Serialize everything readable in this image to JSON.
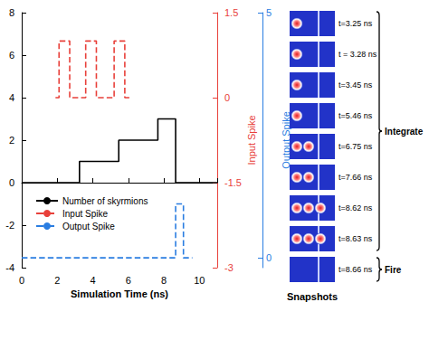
{
  "chart_data": {
    "type": "step",
    "xlabel": "Simulation Time (ns)",
    "xlim": [
      0,
      11
    ],
    "xticks": [
      0,
      2,
      4,
      6,
      8,
      10
    ],
    "ylim": [
      -4,
      8
    ],
    "yticks": [
      -4,
      -2,
      0,
      2,
      4,
      6,
      8
    ],
    "y2label": "Input Spike",
    "y2lim": [
      -3,
      1.5
    ],
    "y2ticks": [
      -3,
      -1.5,
      0,
      1.5
    ],
    "y3label": "Output Spike",
    "y3lim": [
      -0.2,
      5
    ],
    "y3ticks": [
      0,
      5
    ],
    "legend": "lower left",
    "grid": false,
    "series": [
      {
        "name": "Number of skyrmions",
        "color": "#000000",
        "line_style": "solid",
        "x": [
          0,
          3.25,
          5.46,
          7.66,
          8.66,
          11
        ],
        "values": [
          0,
          1,
          2,
          3,
          0,
          0
        ]
      },
      {
        "name": "Input Spike",
        "color": "#e8403a",
        "line_style": "dashed",
        "axis": "y2",
        "x": [
          1.9,
          2.1,
          2.7,
          3.6,
          4.2,
          5.2,
          5.8,
          6.1
        ],
        "values": [
          0,
          1,
          0,
          1,
          0,
          1,
          0,
          0
        ]
      },
      {
        "name": "Output Spike",
        "color": "#2a7de1",
        "line_style": "dashed",
        "axis": "y3",
        "x": [
          0,
          8.66,
          9.1,
          9.6
        ],
        "values": [
          0,
          1.1,
          0,
          0
        ]
      }
    ]
  },
  "snapshots": {
    "label": "Snapshots",
    "frames": [
      {
        "time": "t=3.25 ns",
        "skyrmions": 1,
        "phase": "Integrate"
      },
      {
        "time": "t = 3.28 ns",
        "skyrmions": 1,
        "phase": "Integrate"
      },
      {
        "time": "t=3.45 ns",
        "skyrmions": 1,
        "phase": "Integrate"
      },
      {
        "time": "t=5.46 ns",
        "skyrmions": 1,
        "phase": "Integrate"
      },
      {
        "time": "t=6.75 ns",
        "skyrmions": 2,
        "phase": "Integrate"
      },
      {
        "time": "t=7.66 ns",
        "skyrmions": 2,
        "phase": "Integrate"
      },
      {
        "time": "t=8.62 ns",
        "skyrmions": 3,
        "phase": "Integrate"
      },
      {
        "time": "t=8.63 ns",
        "skyrmions": 3,
        "phase": "Integrate"
      },
      {
        "time": "t=8.66 ns",
        "skyrmions": 0,
        "phase": "Fire"
      }
    ]
  }
}
